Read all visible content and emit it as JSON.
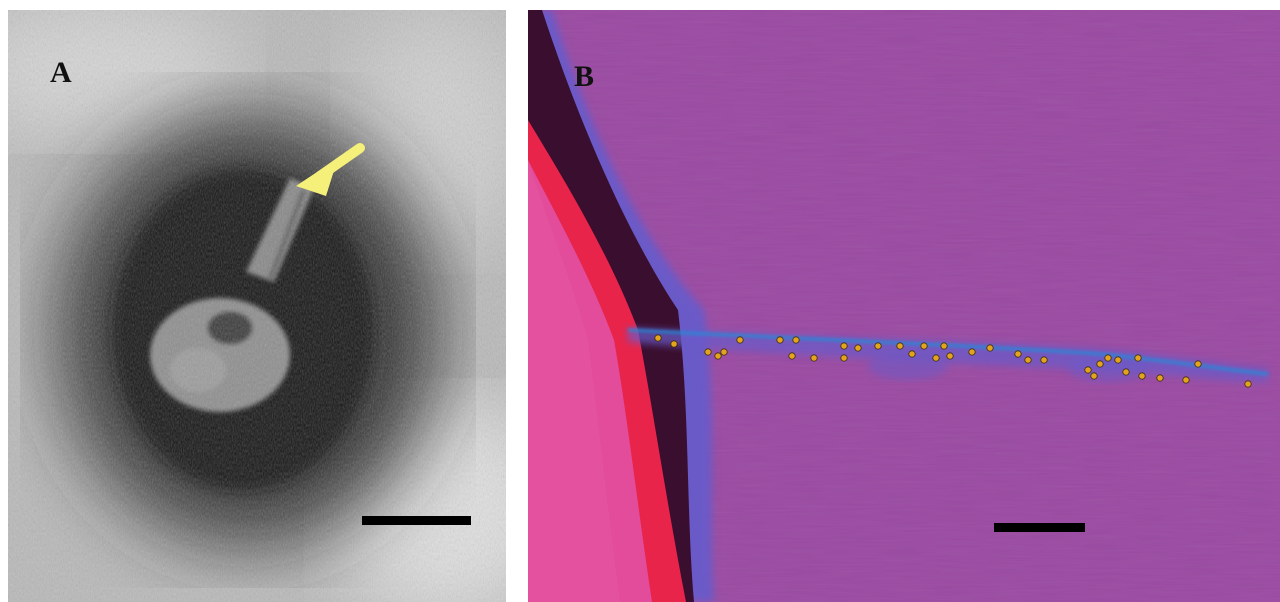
{
  "figure": {
    "panels": [
      {
        "label": "A",
        "kind": "negative-stain electron micrograph",
        "palette": {
          "background": "#b9b9b9",
          "halo": "#1e1e1e",
          "particle": "#8c8c8c"
        },
        "arrow_color": "#f4f07a",
        "scale_bar_color": "#000000"
      },
      {
        "label": "B",
        "kind": "false-colour micrograph with gold-labelled filament",
        "palette": {
          "background": "#9a4aa2",
          "edge_outer": "#e24c9a",
          "edge_red": "#e8244a",
          "edge_dark": "#3a0e2e",
          "edge_blue": "#6a5ac8",
          "filament": "#2a86d6",
          "gold_particle": "#e3a41c"
        },
        "scale_bar_color": "#000000"
      }
    ]
  }
}
